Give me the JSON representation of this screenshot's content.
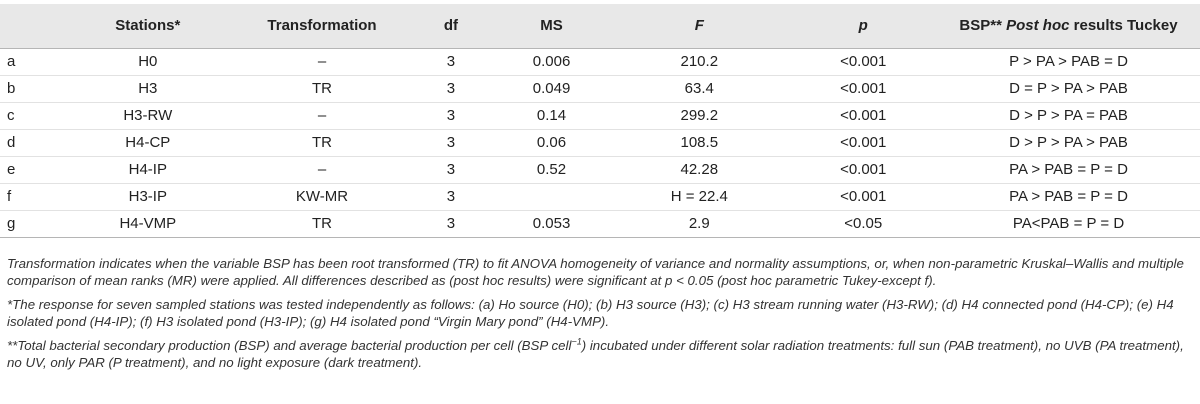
{
  "table": {
    "headers": {
      "label": "",
      "stations": "Stations*",
      "transformation": "Transformation",
      "df": "df",
      "ms": "MS",
      "f": "F",
      "p": "p",
      "bsp_prefix": "BSP**",
      "bsp_posthoc": "Post hoc",
      "bsp_suffix": "results Tuckey"
    },
    "rows": [
      {
        "label": "a",
        "station": "H0",
        "transformation": "–",
        "df": "3",
        "ms": "0.006",
        "f": "210.2",
        "p": "<0.001",
        "posthoc": "P > PA > PAB = D"
      },
      {
        "label": "b",
        "station": "H3",
        "transformation": "TR",
        "df": "3",
        "ms": "0.049",
        "f": "63.4",
        "p": "<0.001",
        "posthoc": "D = P > PA > PAB"
      },
      {
        "label": "c",
        "station": "H3-RW",
        "transformation": "–",
        "df": "3",
        "ms": "0.14",
        "f": "299.2",
        "p": "<0.001",
        "posthoc": "D > P > PA = PAB"
      },
      {
        "label": "d",
        "station": "H4-CP",
        "transformation": "TR",
        "df": "3",
        "ms": "0.06",
        "f": "108.5",
        "p": "<0.001",
        "posthoc": "D > P > PA > PAB"
      },
      {
        "label": "e",
        "station": "H4-IP",
        "transformation": "–",
        "df": "3",
        "ms": "0.52",
        "f": "42.28",
        "p": "<0.001",
        "posthoc": "PA > PAB = P = D"
      },
      {
        "label": "f",
        "station": "H3-IP",
        "transformation": "KW-MR",
        "df": "3",
        "ms": "",
        "f": "H = 22.4",
        "p": "<0.001",
        "posthoc": "PA > PAB = P = D"
      },
      {
        "label": "g",
        "station": "H4-VMP",
        "transformation": "TR",
        "df": "3",
        "ms": "0.053",
        "f": "2.9",
        "p": "<0.05",
        "posthoc": "PA<PAB = P = D"
      }
    ]
  },
  "notes": {
    "main": "Transformation indicates when the variable BSP has been root transformed (TR) to fit ANOVA homogeneity of variance and normality assumptions, or, when non-parametric Kruskal–Wallis and multiple comparison of mean ranks (MR) were applied. All differences described as (post hoc results) were significant at p < 0.05 (post hoc parametric Tukey-except f).",
    "star": "*The response for seven sampled stations was tested independently as follows: (a) Ho source (H0); (b) H3 source (H3); (c) H3 stream running water (H3-RW); (d) H4 connected pond (H4-CP); (e) H4 isolated pond (H4-IP); (f) H3 isolated pond (H3-IP); (g) H4 isolated pond “Virgin Mary pond” (H4-VMP).",
    "dstar_before": "**Total bacterial secondary production (BSP) and average bacterial production per cell (BSP cell",
    "dstar_sup": "−1",
    "dstar_after": ") incubated under different solar radiation treatments: full sun (PAB treatment), no UVB (PA treatment), no UV, only PAR (P treatment), and no light exposure (dark treatment)."
  }
}
